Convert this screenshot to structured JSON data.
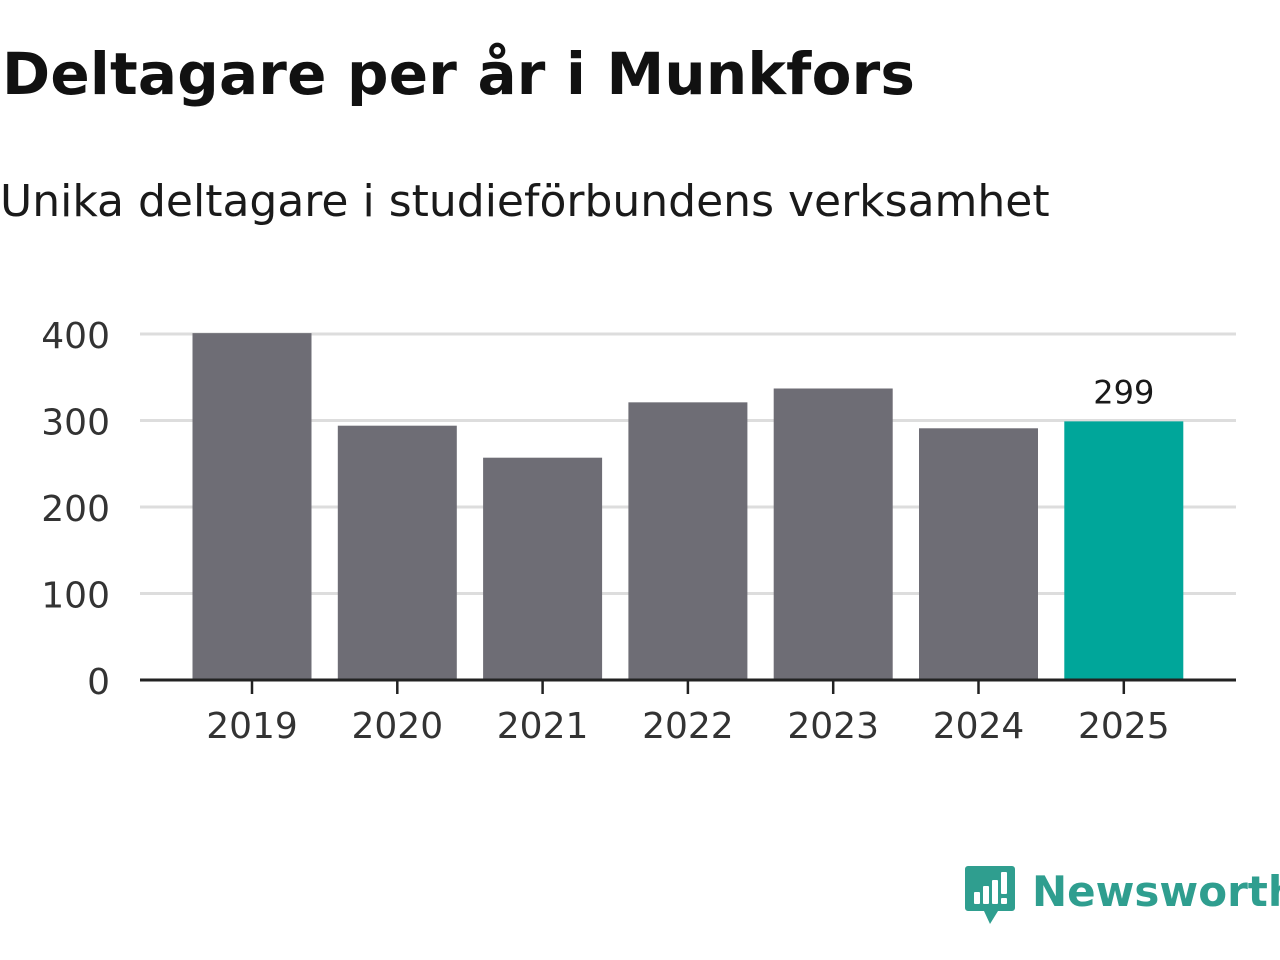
{
  "title": "Deltagare per år i Munkfors",
  "subtitle": "Unika deltagare i studieförbundens verksamhet",
  "brand": {
    "name": "Newsworthy",
    "icon": "newsworthy-logo-icon",
    "color": "#2f9e8f"
  },
  "colors": {
    "bar": "#6e6d75",
    "highlight": "#00a69a",
    "grid": "#dddddd",
    "axis": "#222222"
  },
  "chart_data": {
    "type": "bar",
    "title": "Deltagare per år i Munkfors",
    "subtitle": "Unika deltagare i studieförbundens verksamhet",
    "categories": [
      "2019",
      "2020",
      "2021",
      "2022",
      "2023",
      "2024",
      "2025"
    ],
    "values": [
      401,
      294,
      257,
      321,
      337,
      291,
      299
    ],
    "highlight_index": 6,
    "data_labels": [
      {
        "index": 6,
        "text": "299"
      }
    ],
    "ylim": [
      0,
      400
    ],
    "yticks": [
      0,
      100,
      200,
      300,
      400
    ],
    "ytick_labels": [
      "0",
      "100",
      "200",
      "300",
      "400"
    ],
    "xlabel": "",
    "ylabel": "",
    "grid": true,
    "legend": "none"
  }
}
